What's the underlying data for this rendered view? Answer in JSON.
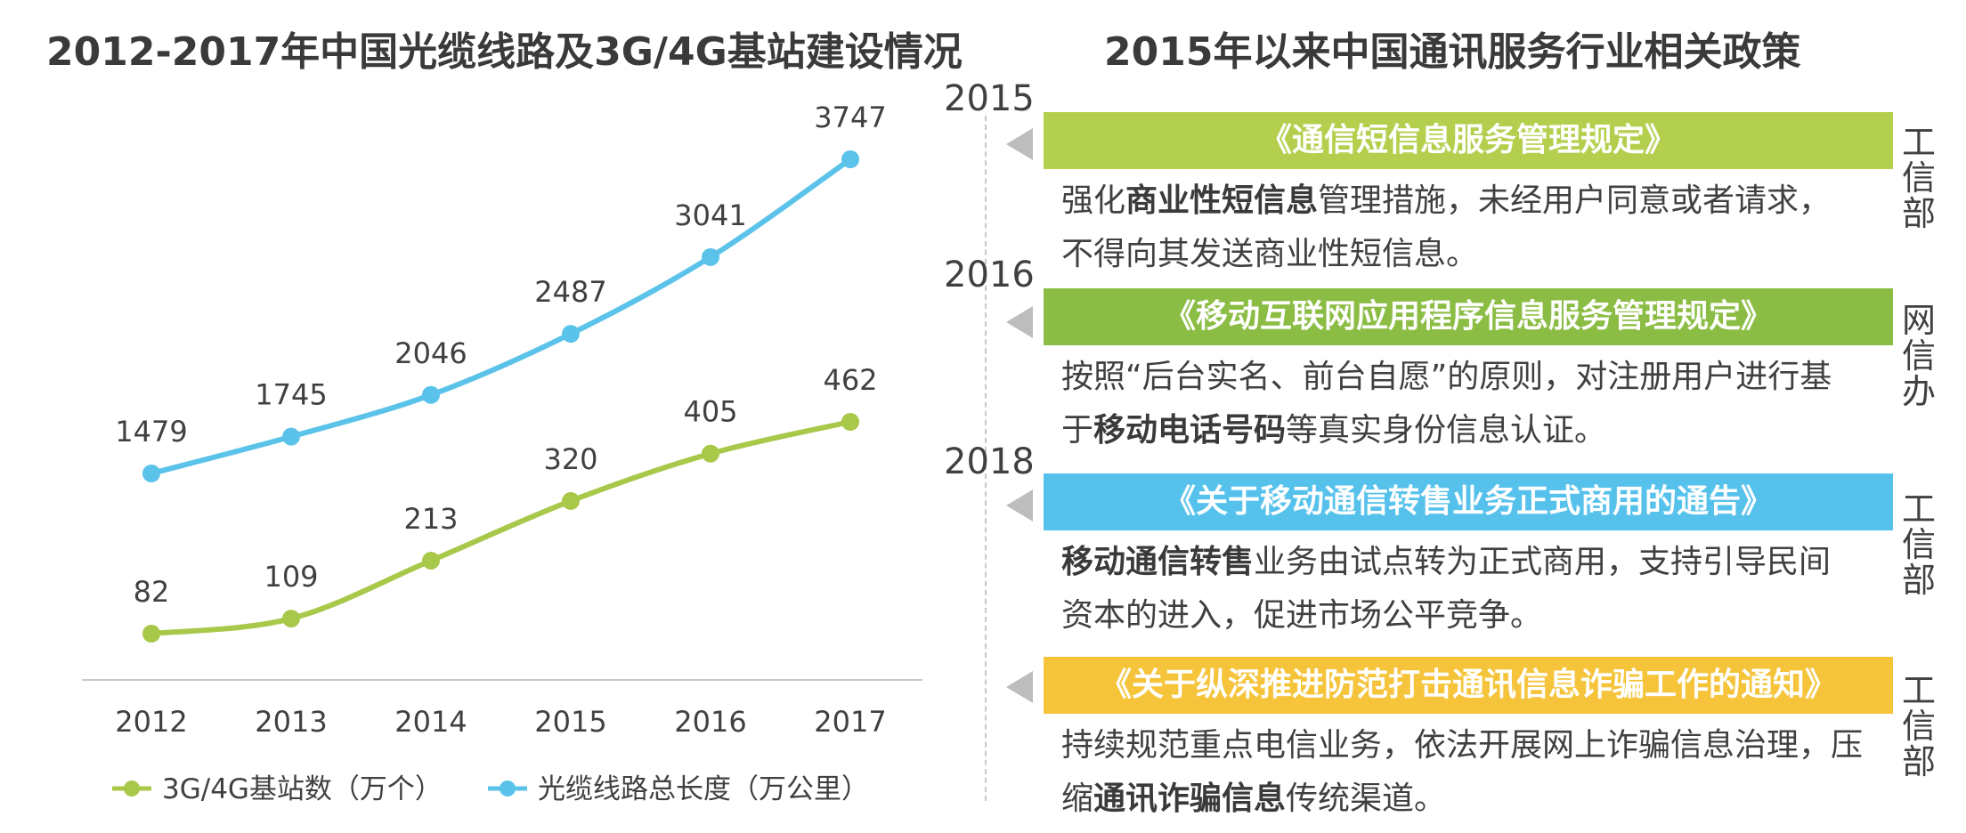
{
  "left_title": "2012-2017年中国光缆线路及3G/4G基站建设情况",
  "right_title": "2015年以来中国通讯服务行业相关政策",
  "chart_data": {
    "type": "line",
    "title": "2012-2017年中国光缆线路及3G/4G基站建设情况",
    "categories": [
      "2012",
      "2013",
      "2014",
      "2015",
      "2016",
      "2017"
    ],
    "series": [
      {
        "name": "3G/4G基站数（万个）",
        "values": [
          82,
          109,
          213,
          320,
          405,
          462
        ],
        "color": "#a8c84a"
      },
      {
        "name": "光缆线路总长度（万公里）",
        "values": [
          1479,
          1745,
          2046,
          2487,
          3041,
          3747
        ],
        "color": "#5bc3ea"
      }
    ],
    "legend_position": "bottom",
    "grid": false
  },
  "timeline": {
    "years": [
      "2015",
      "2016",
      "2018"
    ],
    "items": [
      {
        "title": "《通信短信息服务管理规定》",
        "color": "#b4cf4d",
        "desc": [
          {
            "t": "强化",
            "b": false
          },
          {
            "t": "商业性短信息",
            "b": true
          },
          {
            "t": "管理措施，未经用户同意或者请求，不得向其发送商业性短信息。",
            "b": false
          }
        ],
        "dept": "工信部"
      },
      {
        "title": "《移动互联网应用程序信息服务管理规定》",
        "color": "#8bbd44",
        "desc": [
          {
            "t": "按照“后台实名、前台自愿”的原则，对注册用户进行基于",
            "b": false
          },
          {
            "t": "移动电话号码",
            "b": true
          },
          {
            "t": "等真实身份信息认证。",
            "b": false
          }
        ],
        "dept": "网信办"
      },
      {
        "title": "《关于移动通信转售业务正式商用的通告》",
        "color": "#56c2ec",
        "desc": [
          {
            "t": "移动通信转售",
            "b": true
          },
          {
            "t": "业务由试点转为正式商用，支持引导民间资本的进入，促进市场公平竞争。",
            "b": false
          }
        ],
        "dept": "工信部"
      },
      {
        "title": "《关于纵深推进防范打击通讯信息诈骗工作的通知》",
        "color": "#f5c43a",
        "desc": [
          {
            "t": "持续规范重点电信业务，依法开展网上诈骗信息治理，压缩",
            "b": false
          },
          {
            "t": "通讯诈骗信息",
            "b": true
          },
          {
            "t": "传统渠道。",
            "b": false
          }
        ],
        "dept": "工信部"
      }
    ]
  }
}
